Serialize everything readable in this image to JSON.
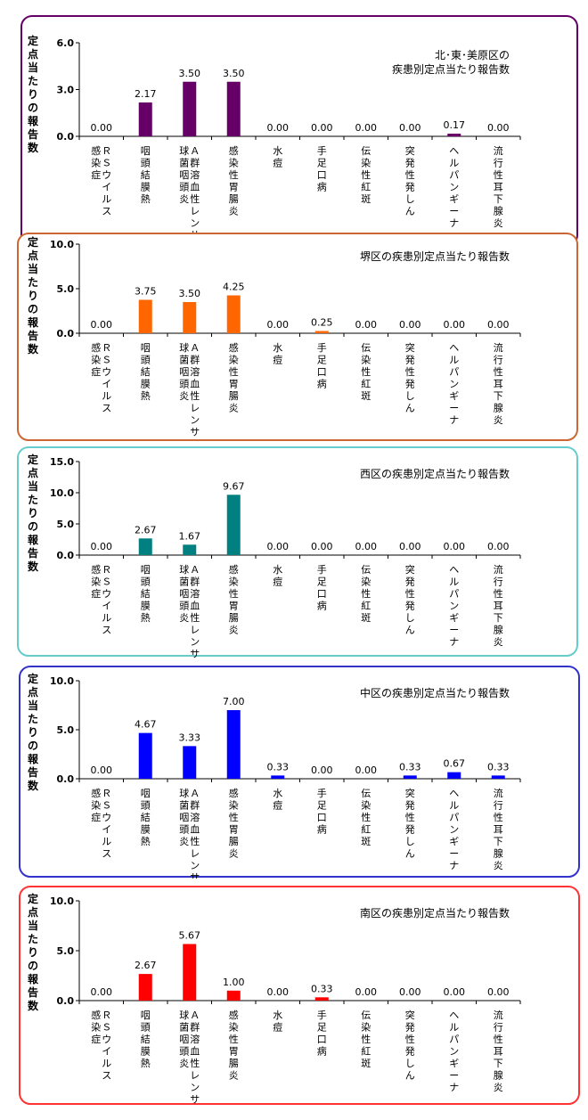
{
  "y_axis_label": "定点当たりの報告数",
  "categories": [
    [
      "Ｒ",
      "Ｓ",
      "ウ",
      "イ",
      "ル",
      "ス",
      "感",
      "染",
      "症"
    ],
    [
      "咽",
      "頭",
      "結",
      "膜",
      "熱"
    ],
    [
      "Ａ",
      "群",
      "溶",
      "血",
      "性",
      "レ",
      "ン",
      "サ",
      "球",
      "菌",
      "咽",
      "頭",
      "炎"
    ],
    [
      "感",
      "染",
      "性",
      "胃",
      "腸",
      "炎"
    ],
    [
      "水",
      "痘"
    ],
    [
      "手",
      "足",
      "口",
      "病"
    ],
    [
      "伝",
      "染",
      "性",
      "紅",
      "斑"
    ],
    [
      "突",
      "発",
      "性",
      "発",
      "し",
      "ん"
    ],
    [
      "ヘ",
      "ル",
      "パ",
      "ン",
      "ギ",
      "ー",
      "ナ"
    ],
    [
      "流",
      "行",
      "性",
      "耳",
      "下",
      "腺",
      "炎"
    ]
  ],
  "chart_data": [
    {
      "type": "bar",
      "title_lines": [
        "北･東･美原区の",
        "疾患別定点当たり報告数"
      ],
      "color": "#660066",
      "border_color": "#660066",
      "ylim": [
        0,
        6
      ],
      "y_ticks": [
        "0.0",
        "3.0",
        "6.0"
      ],
      "y_tick_values": [
        0,
        3,
        6
      ],
      "values": [
        0,
        2.17,
        3.5,
        3.5,
        0,
        0,
        0,
        0,
        0.17,
        0
      ],
      "value_labels": [
        "0.00",
        "2.17",
        "3.50",
        "3.50",
        "0.00",
        "0.00",
        "0.00",
        "0.00",
        "0.17",
        "0.00"
      ]
    },
    {
      "type": "bar",
      "title_lines": [
        "堺区の疾患別定点当たり報告数"
      ],
      "color": "#ff6600",
      "border_color": "#cc6633",
      "ylim": [
        0,
        10
      ],
      "y_ticks": [
        "0.0",
        "5.0",
        "10.0"
      ],
      "y_tick_values": [
        0,
        5,
        10
      ],
      "values": [
        0,
        3.75,
        3.5,
        4.25,
        0,
        0.25,
        0,
        0,
        0,
        0
      ],
      "value_labels": [
        "0.00",
        "3.75",
        "3.50",
        "4.25",
        "0.00",
        "0.25",
        "0.00",
        "0.00",
        "0.00",
        "0.00"
      ]
    },
    {
      "type": "bar",
      "title_lines": [
        "西区の疾患別定点当たり報告数"
      ],
      "color": "#008080",
      "border_color": "#66cccc",
      "ylim": [
        0,
        15
      ],
      "y_ticks": [
        "0.0",
        "5.0",
        "10.0",
        "15.0"
      ],
      "y_tick_values": [
        0,
        5,
        10,
        15
      ],
      "values": [
        0,
        2.67,
        1.67,
        9.67,
        0,
        0,
        0,
        0,
        0,
        0
      ],
      "value_labels": [
        "0.00",
        "2.67",
        "1.67",
        "9.67",
        "0.00",
        "0.00",
        "0.00",
        "0.00",
        "0.00",
        "0.00"
      ]
    },
    {
      "type": "bar",
      "title_lines": [
        "中区の疾患別定点当たり報告数"
      ],
      "color": "#0000ff",
      "border_color": "#3333cc",
      "ylim": [
        0,
        10
      ],
      "y_ticks": [
        "0.0",
        "5.0",
        "10.0"
      ],
      "y_tick_values": [
        0,
        5,
        10
      ],
      "values": [
        0,
        4.67,
        3.33,
        7,
        0.33,
        0,
        0,
        0.33,
        0.67,
        0.33
      ],
      "value_labels": [
        "0.00",
        "4.67",
        "3.33",
        "7.00",
        "0.33",
        "0.00",
        "0.00",
        "0.33",
        "0.67",
        "0.33"
      ]
    },
    {
      "type": "bar",
      "title_lines": [
        "南区の疾患別定点当たり報告数"
      ],
      "color": "#ff0000",
      "border_color": "#ff3333",
      "ylim": [
        0,
        10
      ],
      "y_ticks": [
        "0.0",
        "5.0",
        "10.0"
      ],
      "y_tick_values": [
        0,
        5,
        10
      ],
      "values": [
        0,
        2.67,
        5.67,
        1,
        0,
        0.33,
        0,
        0,
        0,
        0
      ],
      "value_labels": [
        "0.00",
        "2.67",
        "5.67",
        "1.00",
        "0.00",
        "0.33",
        "0.00",
        "0.00",
        "0.00",
        "0.00"
      ]
    }
  ]
}
